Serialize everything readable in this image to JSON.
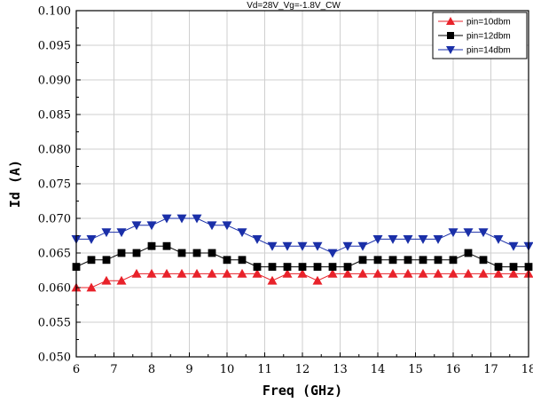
{
  "chart_data": {
    "type": "line",
    "title": "Vd=28V_Vg=-1.8V_CW",
    "xlabel": "Freq (GHz)",
    "ylabel": "Id (A)",
    "xlim": [
      6,
      18
    ],
    "ylim": [
      0.05,
      0.1
    ],
    "x_ticks": [
      "6",
      "7",
      "8",
      "9",
      "10",
      "11",
      "12",
      "13",
      "14",
      "15",
      "16",
      "17",
      "18"
    ],
    "y_ticks": [
      "0.050",
      "0.055",
      "0.060",
      "0.065",
      "0.070",
      "0.075",
      "0.080",
      "0.085",
      "0.090",
      "0.095",
      "0.100"
    ],
    "grid": true,
    "legend_position": "top-right",
    "x": [
      6.0,
      6.4,
      6.8,
      7.2,
      7.6,
      8.0,
      8.4,
      8.8,
      9.2,
      9.6,
      10.0,
      10.4,
      10.8,
      11.2,
      11.6,
      12.0,
      12.4,
      12.8,
      13.2,
      13.6,
      14.0,
      14.4,
      14.8,
      15.2,
      15.6,
      16.0,
      16.4,
      16.8,
      17.2,
      17.6,
      18.0
    ],
    "series": [
      {
        "name": "pin=10dbm",
        "color": "#e8222a",
        "marker": "triangle-up",
        "values": [
          0.06,
          0.06,
          0.061,
          0.061,
          0.062,
          0.062,
          0.062,
          0.062,
          0.062,
          0.062,
          0.062,
          0.062,
          0.062,
          0.061,
          0.062,
          0.062,
          0.061,
          0.062,
          0.062,
          0.062,
          0.062,
          0.062,
          0.062,
          0.062,
          0.062,
          0.062,
          0.062,
          0.062,
          0.062,
          0.062,
          0.062
        ]
      },
      {
        "name": "pin=12dbm",
        "color": "#000000",
        "marker": "square",
        "values": [
          0.063,
          0.064,
          0.064,
          0.065,
          0.065,
          0.066,
          0.066,
          0.065,
          0.065,
          0.065,
          0.064,
          0.064,
          0.063,
          0.063,
          0.063,
          0.063,
          0.063,
          0.063,
          0.063,
          0.064,
          0.064,
          0.064,
          0.064,
          0.064,
          0.064,
          0.064,
          0.065,
          0.064,
          0.063,
          0.063,
          0.063
        ]
      },
      {
        "name": "pin=14dbm",
        "color": "#1a2fa8",
        "marker": "triangle-down",
        "values": [
          0.067,
          0.067,
          0.068,
          0.068,
          0.069,
          0.069,
          0.07,
          0.07,
          0.07,
          0.069,
          0.069,
          0.068,
          0.067,
          0.066,
          0.066,
          0.066,
          0.066,
          0.065,
          0.066,
          0.066,
          0.067,
          0.067,
          0.067,
          0.067,
          0.067,
          0.068,
          0.068,
          0.068,
          0.067,
          0.066,
          0.066
        ]
      }
    ]
  }
}
